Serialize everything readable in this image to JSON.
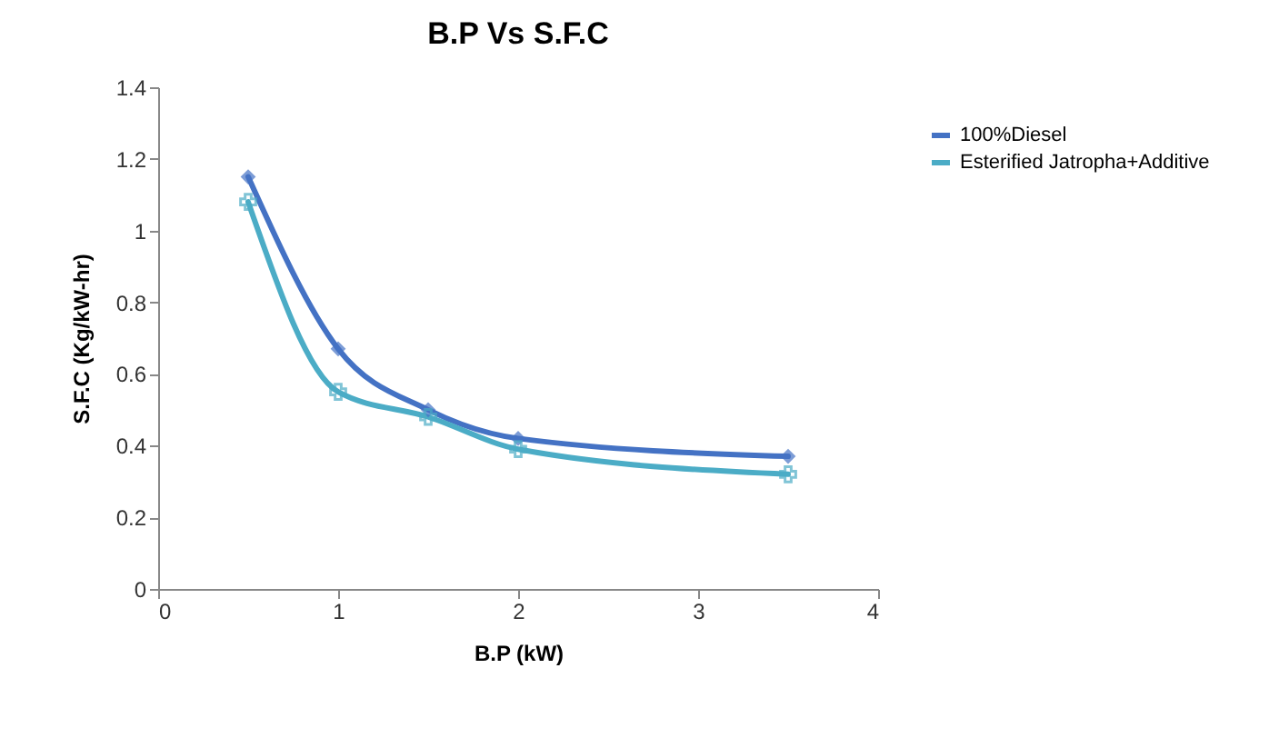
{
  "chart_data": {
    "type": "line",
    "title": "B.P Vs S.F.C",
    "xlabel": "B.P (kW)",
    "ylabel": "S.F.C (Kg/kW-hr)",
    "x": [
      0.5,
      1,
      1.5,
      2,
      3.5
    ],
    "series": [
      {
        "name": "100%Diesel",
        "color": "#4472c4",
        "marker": "diamond",
        "values": [
          1.15,
          0.67,
          0.5,
          0.42,
          0.37
        ]
      },
      {
        "name": "Esterified Jatropha+Additive",
        "color": "#4bacc6",
        "marker": "cross",
        "values": [
          1.08,
          0.55,
          0.48,
          0.39,
          0.32
        ]
      }
    ],
    "xlim": [
      0,
      4
    ],
    "xticks": [
      0,
      1,
      2,
      3,
      4
    ],
    "ylim": [
      0,
      1.4
    ],
    "yticks": [
      0,
      0.2,
      0.4,
      0.6,
      0.8,
      1,
      1.2,
      1.4
    ],
    "grid": false,
    "legend": "right",
    "line_style": "solid"
  }
}
